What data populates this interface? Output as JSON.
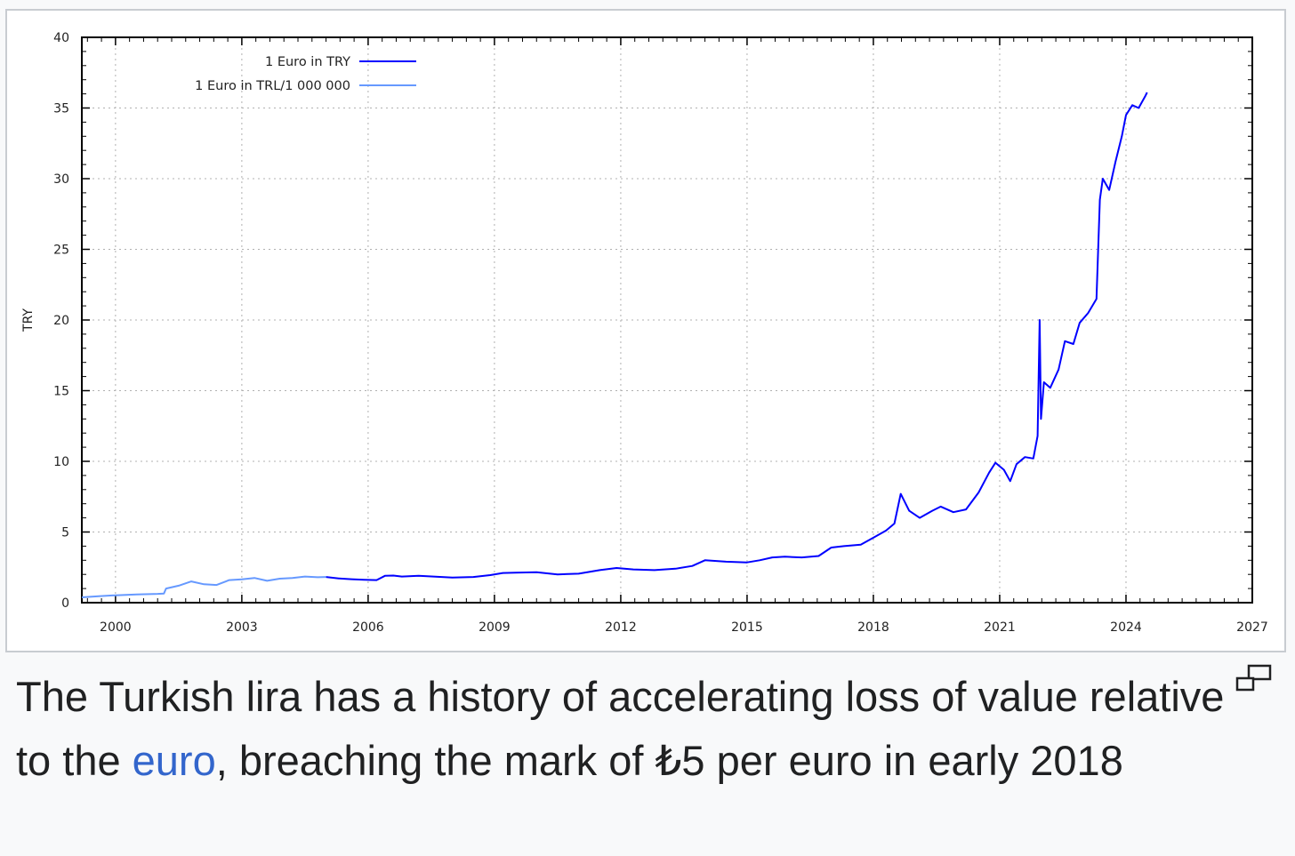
{
  "chart_data": {
    "type": "line",
    "ylabel": "TRY",
    "xlim": [
      1999.2,
      2027
    ],
    "ylim": [
      0,
      40
    ],
    "x_ticks": [
      2000,
      2003,
      2006,
      2009,
      2012,
      2015,
      2018,
      2021,
      2024,
      2027
    ],
    "y_ticks": [
      0,
      5,
      10,
      15,
      20,
      25,
      30,
      35,
      40
    ],
    "grid": true,
    "legend_position": "top-left",
    "series": [
      {
        "name": "1 Euro in TRY",
        "color": "#0000ff",
        "points": [
          [
            2005.0,
            1.82
          ],
          [
            2005.3,
            1.72
          ],
          [
            2005.6,
            1.66
          ],
          [
            2005.9,
            1.62
          ],
          [
            2006.2,
            1.6
          ],
          [
            2006.4,
            1.9
          ],
          [
            2006.6,
            1.92
          ],
          [
            2006.8,
            1.85
          ],
          [
            2007.2,
            1.9
          ],
          [
            2007.6,
            1.84
          ],
          [
            2008.0,
            1.78
          ],
          [
            2008.5,
            1.82
          ],
          [
            2008.9,
            1.95
          ],
          [
            2009.2,
            2.1
          ],
          [
            2009.5,
            2.12
          ],
          [
            2010.0,
            2.15
          ],
          [
            2010.5,
            2.0
          ],
          [
            2011.0,
            2.05
          ],
          [
            2011.5,
            2.3
          ],
          [
            2011.9,
            2.45
          ],
          [
            2012.3,
            2.35
          ],
          [
            2012.8,
            2.3
          ],
          [
            2013.3,
            2.4
          ],
          [
            2013.7,
            2.6
          ],
          [
            2014.0,
            3.0
          ],
          [
            2014.5,
            2.9
          ],
          [
            2015.0,
            2.85
          ],
          [
            2015.3,
            3.0
          ],
          [
            2015.6,
            3.2
          ],
          [
            2015.9,
            3.25
          ],
          [
            2016.3,
            3.2
          ],
          [
            2016.7,
            3.3
          ],
          [
            2017.0,
            3.9
          ],
          [
            2017.3,
            4.0
          ],
          [
            2017.7,
            4.1
          ],
          [
            2018.0,
            4.6
          ],
          [
            2018.3,
            5.1
          ],
          [
            2018.5,
            5.6
          ],
          [
            2018.65,
            7.7
          ],
          [
            2018.85,
            6.5
          ],
          [
            2019.1,
            6.0
          ],
          [
            2019.4,
            6.5
          ],
          [
            2019.6,
            6.8
          ],
          [
            2019.9,
            6.4
          ],
          [
            2020.2,
            6.6
          ],
          [
            2020.5,
            7.8
          ],
          [
            2020.75,
            9.2
          ],
          [
            2020.9,
            9.9
          ],
          [
            2021.1,
            9.4
          ],
          [
            2021.25,
            8.6
          ],
          [
            2021.4,
            9.8
          ],
          [
            2021.6,
            10.3
          ],
          [
            2021.8,
            10.2
          ],
          [
            2021.9,
            11.8
          ],
          [
            2021.95,
            20.0
          ],
          [
            2021.98,
            13.0
          ],
          [
            2022.05,
            15.6
          ],
          [
            2022.2,
            15.2
          ],
          [
            2022.4,
            16.5
          ],
          [
            2022.55,
            18.5
          ],
          [
            2022.75,
            18.3
          ],
          [
            2022.9,
            19.8
          ],
          [
            2023.1,
            20.5
          ],
          [
            2023.3,
            21.5
          ],
          [
            2023.38,
            28.5
          ],
          [
            2023.45,
            30.0
          ],
          [
            2023.6,
            29.2
          ],
          [
            2023.75,
            31.2
          ],
          [
            2023.9,
            33.0
          ],
          [
            2024.0,
            34.5
          ],
          [
            2024.15,
            35.2
          ],
          [
            2024.3,
            35.0
          ],
          [
            2024.45,
            35.8
          ],
          [
            2024.5,
            36.1
          ]
        ]
      },
      {
        "name": "1 Euro in TRL/1 000 000",
        "color": "#6699ff",
        "points": [
          [
            1999.2,
            0.38
          ],
          [
            1999.6,
            0.45
          ],
          [
            2000.0,
            0.52
          ],
          [
            2000.5,
            0.58
          ],
          [
            2001.0,
            0.62
          ],
          [
            2001.15,
            0.65
          ],
          [
            2001.2,
            1.0
          ],
          [
            2001.5,
            1.2
          ],
          [
            2001.8,
            1.5
          ],
          [
            2002.1,
            1.3
          ],
          [
            2002.4,
            1.25
          ],
          [
            2002.7,
            1.6
          ],
          [
            2003.0,
            1.65
          ],
          [
            2003.3,
            1.75
          ],
          [
            2003.6,
            1.55
          ],
          [
            2003.9,
            1.7
          ],
          [
            2004.2,
            1.75
          ],
          [
            2004.5,
            1.85
          ],
          [
            2004.8,
            1.8
          ],
          [
            2005.0,
            1.82
          ]
        ]
      }
    ]
  },
  "caption": {
    "before_link": "The Turkish lira has a history of accelerating loss of value relative to the ",
    "link": "euro",
    "after_link": ", breaching the mark of ₺5 per euro in early 2018"
  },
  "enlarge_icon": "enlarge-icon"
}
